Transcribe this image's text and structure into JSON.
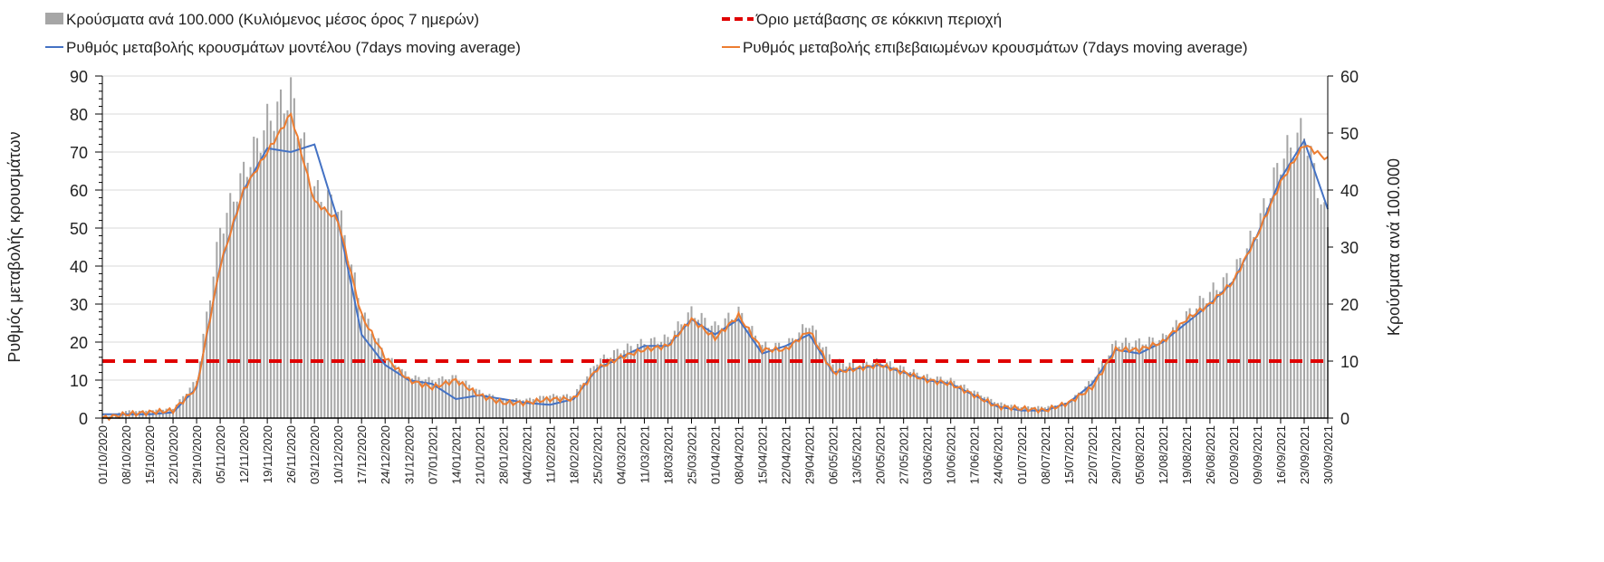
{
  "chart_data": {
    "type": "bar+line",
    "legend": {
      "bars": "Κρούσματα ανά 100.000 (Κυλιόμενος μέσος όρος 7 ημερών)",
      "threshold": "Όριο μετάβασης σε κόκκινη περιοχή",
      "model": "Ρυθμός μεταβολής κρουσμάτων μοντέλου (7days moving average)",
      "confirmed": "Ρυθμός μεταβολής επιβεβαιωμένων κρουσμάτων (7days moving average)"
    },
    "ylabel_left": "Ρυθμός μεταβολής κρουσμάτων",
    "ylabel_right": "Κρούσματα ανά 100.000",
    "ylim_left": [
      0,
      90
    ],
    "ylim_right": [
      0,
      60
    ],
    "yticks_left": [
      "0",
      "10",
      "20",
      "30",
      "40",
      "50",
      "60",
      "70",
      "80",
      "90"
    ],
    "yticks_right": [
      "0",
      "10",
      "20",
      "30",
      "40",
      "50",
      "60"
    ],
    "threshold_left": 15,
    "grid": true,
    "x": [
      "01/10/2020",
      "08/10/2020",
      "15/10/2020",
      "22/10/2020",
      "29/10/2020",
      "05/11/2020",
      "12/11/2020",
      "19/11/2020",
      "26/11/2020",
      "03/12/2020",
      "10/12/2020",
      "17/12/2020",
      "24/12/2020",
      "31/12/2020",
      "07/01/2021",
      "14/01/2021",
      "21/01/2021",
      "28/01/2021",
      "04/02/2021",
      "11/02/2021",
      "18/02/2021",
      "25/02/2021",
      "04/03/2021",
      "11/03/2021",
      "18/03/2021",
      "25/03/2021",
      "01/04/2021",
      "08/04/2021",
      "15/04/2021",
      "22/04/2021",
      "29/04/2021",
      "06/05/2021",
      "13/05/2021",
      "20/05/2021",
      "27/05/2021",
      "03/06/2021",
      "10/06/2021",
      "17/06/2021",
      "24/06/2021",
      "01/07/2021",
      "08/07/2021",
      "15/07/2021",
      "22/07/2021",
      "29/07/2021",
      "05/08/2021",
      "12/08/2021",
      "19/08/2021",
      "26/08/2021",
      "02/09/2021",
      "09/09/2021",
      "16/09/2021",
      "23/09/2021",
      "30/09/2021"
    ],
    "series": [
      {
        "name": "model",
        "axis": "left",
        "color": "#4472c4",
        "values": [
          1,
          1,
          1,
          1.5,
          8,
          40,
          60,
          71,
          70,
          72,
          52,
          22,
          14,
          10,
          9,
          5,
          6,
          5,
          4,
          3.5,
          5,
          13,
          16,
          19,
          19,
          26,
          22,
          26,
          17,
          19,
          22,
          12,
          13,
          14,
          12,
          10,
          9,
          6,
          3,
          2,
          2,
          4,
          9,
          18,
          17,
          20,
          25,
          30,
          36,
          48,
          63,
          73,
          55
        ]
      },
      {
        "name": "confirmed",
        "axis": "left",
        "color": "#ed7d31",
        "values": [
          0,
          1,
          1.5,
          2,
          8,
          40,
          60,
          70,
          80,
          57,
          52,
          27,
          16,
          10,
          8,
          10,
          6,
          4,
          4,
          5,
          5,
          13,
          16,
          18,
          19,
          26,
          21,
          27,
          18,
          18,
          23,
          12,
          13,
          14,
          12,
          10,
          9,
          6,
          3,
          2.5,
          2,
          4,
          8,
          18,
          18,
          20,
          26,
          30,
          36,
          48,
          62,
          72,
          68
        ]
      },
      {
        "name": "bars",
        "axis": "right",
        "color": "#a6a6a6",
        "values": [
          0,
          1.3,
          1.3,
          1.7,
          6.7,
          33,
          43,
          52,
          57,
          40,
          37,
          19,
          11,
          7.3,
          6.7,
          7.3,
          4.7,
          3.3,
          3.3,
          4,
          4,
          10,
          12,
          13.3,
          14,
          18.7,
          16,
          18.7,
          12.7,
          12.7,
          16.7,
          10,
          9.3,
          10,
          8.7,
          7.3,
          6.7,
          4.7,
          2.7,
          2,
          2,
          2.7,
          6.7,
          13.3,
          13.3,
          14,
          18,
          22,
          25.3,
          33.3,
          45.3,
          50.7,
          33.3
        ]
      }
    ],
    "threshold_color": "#e00000"
  }
}
